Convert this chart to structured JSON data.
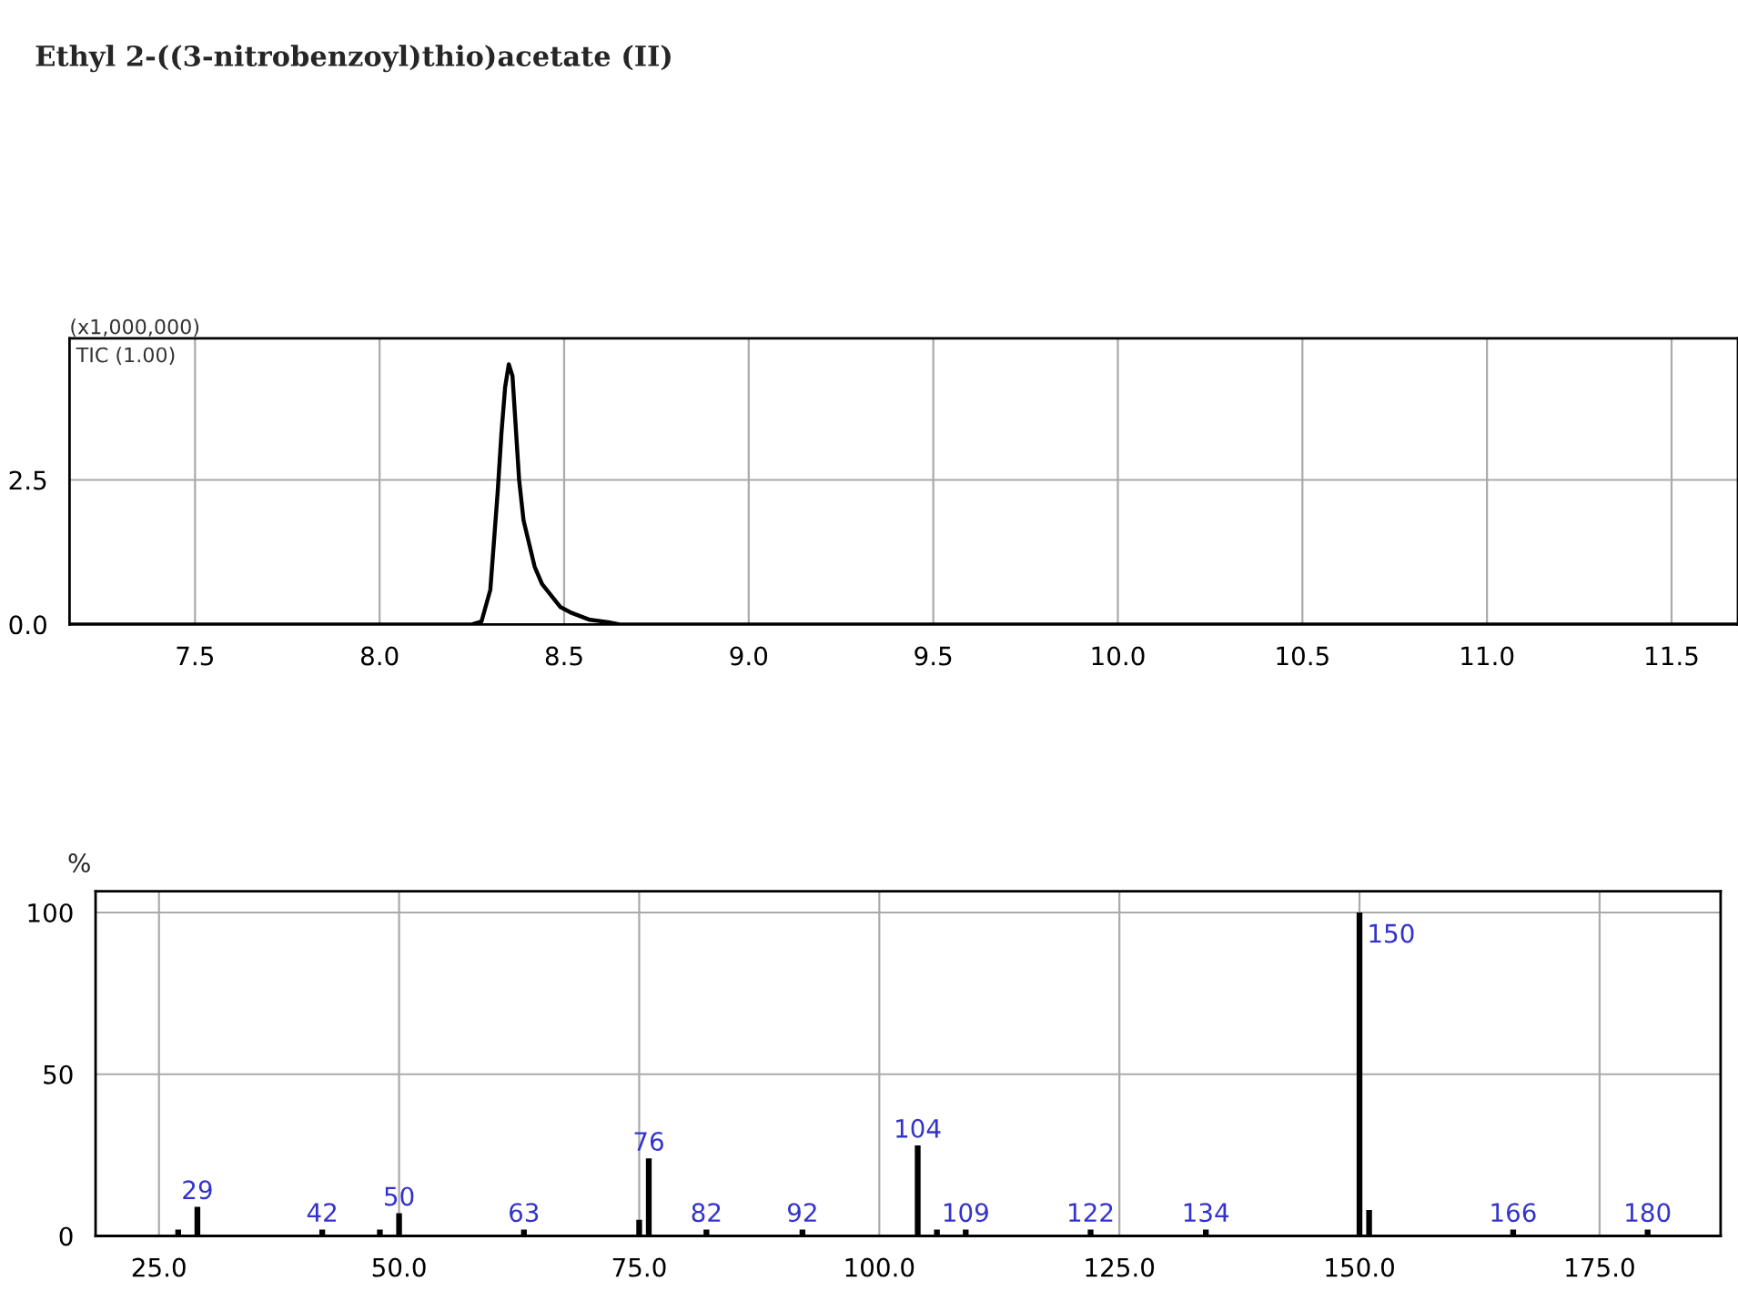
{
  "chart_data": [
    {
      "type": "line",
      "title": "Ethyl 2-((3-nitrobenzoyl)thio)acetate (II)",
      "x": [
        7.16,
        8.25,
        8.276,
        8.3,
        8.32,
        8.33,
        8.34,
        8.35,
        8.36,
        8.378,
        8.39,
        8.42,
        8.44,
        8.465,
        8.49,
        8.52,
        8.57,
        8.62,
        8.65,
        11.68
      ],
      "series": [
        {
          "color": "#000000",
          "values": [
            0,
            0,
            0.05,
            0.6,
            2.3,
            3.3,
            4.1,
            4.5,
            4.3,
            2.5,
            1.8,
            1.0,
            0.7,
            0.5,
            0.3,
            0.2,
            0.08,
            0.04,
            0,
            0
          ]
        }
      ],
      "annotations": [
        "(x1,000,000)",
        "TIC (1.00)"
      ],
      "xlim": [
        7.16,
        11.68
      ],
      "xticks": [
        7.5,
        {
          "value": 8,
          "label": "8.0"
        },
        8.5,
        {
          "value": 9,
          "label": "9.0"
        },
        9.5,
        {
          "value": 10,
          "label": "10.0"
        },
        10.5,
        {
          "value": 11,
          "label": "11.0"
        },
        11.5
      ],
      "ylim": [
        0,
        4.95
      ],
      "yticks": [
        {
          "value": 0,
          "label": "0.0"
        },
        2.5
      ],
      "grid": true,
      "legend": false
    },
    {
      "type": "bar",
      "ylabel": "%",
      "x": [
        27,
        29,
        42,
        48,
        50,
        63,
        75,
        76,
        82,
        92,
        104,
        106,
        109,
        122,
        134,
        150,
        151,
        166,
        180
      ],
      "series": [
        {
          "color": "#000000",
          "values": [
            2,
            9,
            2,
            2,
            7,
            2,
            5,
            24,
            2,
            2,
            28,
            2,
            2,
            2,
            2,
            100,
            8,
            2,
            2
          ]
        }
      ],
      "annotations": [
        {
          "text": "29",
          "x": 29,
          "y": 9
        },
        {
          "text": "42",
          "x": 42,
          "y": 2
        },
        {
          "text": "50",
          "x": 50,
          "y": 7
        },
        {
          "text": "63",
          "x": 63,
          "y": 2
        },
        {
          "text": "76",
          "x": 76,
          "y": 24
        },
        {
          "text": "82",
          "x": 82,
          "y": 2
        },
        {
          "text": "92",
          "x": 92,
          "y": 2
        },
        {
          "text": "104",
          "x": 104,
          "y": 28
        },
        {
          "text": "109",
          "x": 109,
          "y": 2
        },
        {
          "text": "122",
          "x": 122,
          "y": 2
        },
        {
          "text": "134",
          "x": 134,
          "y": 2
        },
        {
          "text": "150",
          "x": 150,
          "y": 100
        },
        {
          "text": "166",
          "x": 166,
          "y": 2
        },
        {
          "text": "180",
          "x": 180,
          "y": 2
        }
      ],
      "xlim": [
        18.4,
        187.6
      ],
      "xticks": [
        {
          "value": 25,
          "label": "25.0"
        },
        {
          "value": 50,
          "label": "50.0"
        },
        {
          "value": 75,
          "label": "75.0"
        },
        {
          "value": 100,
          "label": "100.0"
        },
        {
          "value": 125,
          "label": "125.0"
        },
        {
          "value": 150,
          "label": "150.0"
        },
        {
          "value": 175,
          "label": "175.0"
        }
      ],
      "ylim": [
        0,
        106.6
      ],
      "yticks": [
        0,
        50,
        100
      ],
      "grid": true,
      "legend": false
    }
  ]
}
